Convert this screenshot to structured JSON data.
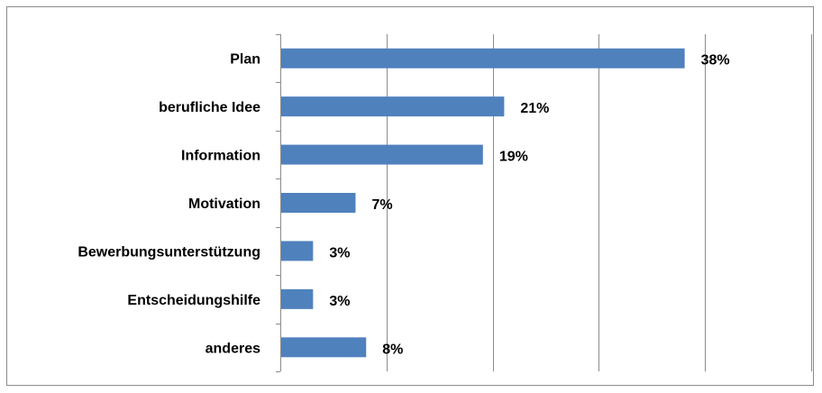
{
  "chart_data": {
    "type": "bar",
    "orientation": "horizontal",
    "categories": [
      "Plan",
      "berufliche Idee",
      "Information",
      "Motivation",
      "Bewerbungsunterstützung",
      "Entscheidungshilfe",
      "anderes"
    ],
    "values": [
      38,
      21,
      19,
      7,
      3,
      3,
      8
    ],
    "value_labels": [
      "38%",
      "21%",
      "19%",
      "7%",
      "3%",
      "3%",
      "8%"
    ],
    "unit": "%",
    "xlim": [
      0,
      50
    ],
    "grid": true,
    "legend": "none",
    "bar_color": "#4f81bd",
    "grid_color": "#8c8c8c",
    "axis_color": "#8c8c8c"
  }
}
